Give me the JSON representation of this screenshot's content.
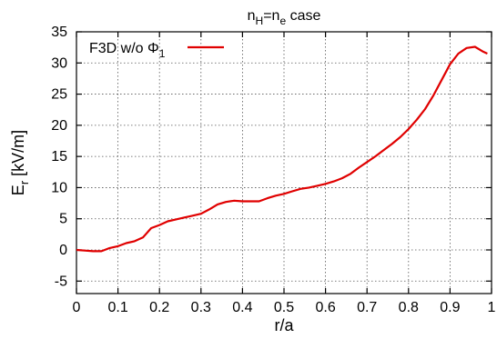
{
  "chart_data": {
    "type": "line",
    "title": {
      "main": "n",
      "sub1": "H",
      "mid": "=n",
      "sub2": "e",
      "tail": " case"
    },
    "xlabel": "r/a",
    "ylabel": {
      "main": "E",
      "sub": "r",
      "tail": " [kV/m]"
    },
    "xlim": [
      0,
      1.0
    ],
    "ylim": [
      -7,
      35
    ],
    "xticks": [
      "0",
      "0.1",
      "0.2",
      "0.3",
      "0.4",
      "0.5",
      "0.6",
      "0.7",
      "0.8",
      "0.9",
      "1"
    ],
    "yticks": [
      "-5",
      "0",
      "5",
      "10",
      "15",
      "20",
      "25",
      "30",
      "35"
    ],
    "grid": true,
    "legend_position": "top-left",
    "series": [
      {
        "name": {
          "main": "F3D w/o Φ",
          "sub": "1"
        },
        "color": "#e00000",
        "x": [
          0.0,
          0.02,
          0.04,
          0.06,
          0.08,
          0.1,
          0.12,
          0.14,
          0.16,
          0.18,
          0.2,
          0.22,
          0.24,
          0.26,
          0.28,
          0.3,
          0.32,
          0.34,
          0.36,
          0.38,
          0.4,
          0.42,
          0.44,
          0.46,
          0.48,
          0.5,
          0.52,
          0.54,
          0.56,
          0.58,
          0.6,
          0.62,
          0.64,
          0.66,
          0.68,
          0.7,
          0.72,
          0.74,
          0.76,
          0.78,
          0.8,
          0.82,
          0.84,
          0.86,
          0.88,
          0.9,
          0.92,
          0.94,
          0.96,
          0.98,
          0.99
        ],
        "values": [
          0.0,
          -0.1,
          -0.2,
          -0.2,
          0.3,
          0.6,
          1.1,
          1.4,
          2.0,
          3.5,
          4.0,
          4.6,
          4.9,
          5.2,
          5.5,
          5.8,
          6.5,
          7.3,
          7.7,
          7.9,
          7.8,
          7.8,
          7.8,
          8.3,
          8.7,
          9.0,
          9.4,
          9.8,
          10.0,
          10.3,
          10.6,
          11.0,
          11.5,
          12.2,
          13.2,
          14.1,
          15.0,
          16.0,
          17.0,
          18.1,
          19.4,
          20.9,
          22.6,
          24.8,
          27.3,
          29.8,
          31.5,
          32.4,
          32.6,
          31.8,
          31.5
        ]
      }
    ]
  }
}
